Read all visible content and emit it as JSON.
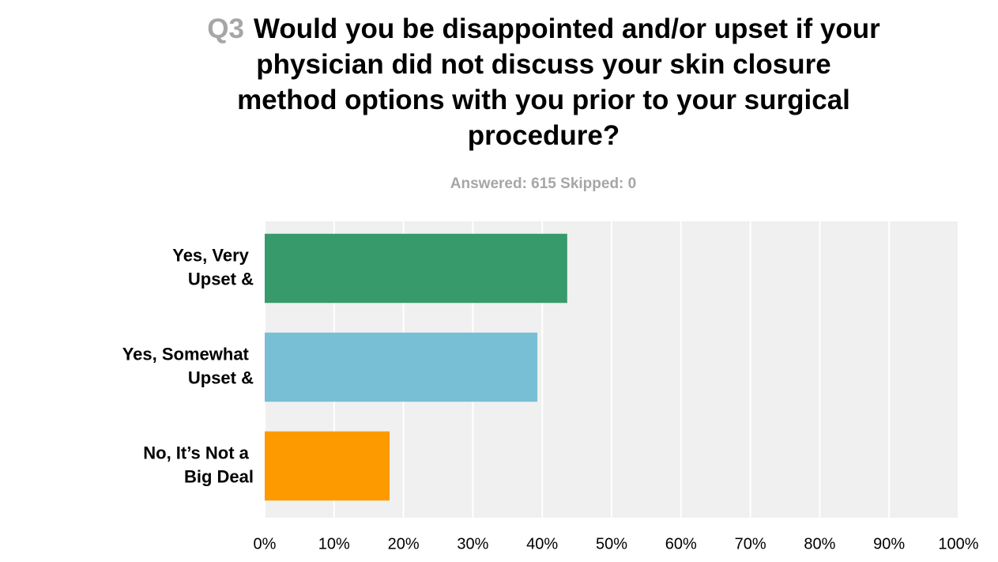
{
  "chart_data": {
    "type": "bar",
    "orientation": "horizontal",
    "question_number": "Q3",
    "title": "Would you be disappointed and/or upset if your physician did not discuss your skin closure method options with you prior to your surgical procedure?",
    "subtitle": "Answered: 615 Skipped: 0",
    "categories": [
      "Yes, Very Upset &",
      "Yes, Somewhat Upset &",
      "No, It’s Not a Big Deal"
    ],
    "values": [
      43.6,
      39.3,
      18
    ],
    "colors": [
      "#379a6a",
      "#78bfd5",
      "#fd9a00"
    ],
    "xlim": [
      0,
      100
    ],
    "xticks": [
      {
        "value": 0,
        "label": "0%"
      },
      {
        "value": 10,
        "label": "10%"
      },
      {
        "value": 20,
        "label": "20%"
      },
      {
        "value": 30,
        "label": "30%"
      },
      {
        "value": 40,
        "label": "40%"
      },
      {
        "value": 50,
        "label": "50%"
      },
      {
        "value": 60,
        "label": "60%"
      },
      {
        "value": 70,
        "label": "70%"
      },
      {
        "value": 80,
        "label": "80%"
      },
      {
        "value": 90,
        "label": "90%"
      },
      {
        "value": 100,
        "label": "100%"
      }
    ],
    "grid": true
  }
}
